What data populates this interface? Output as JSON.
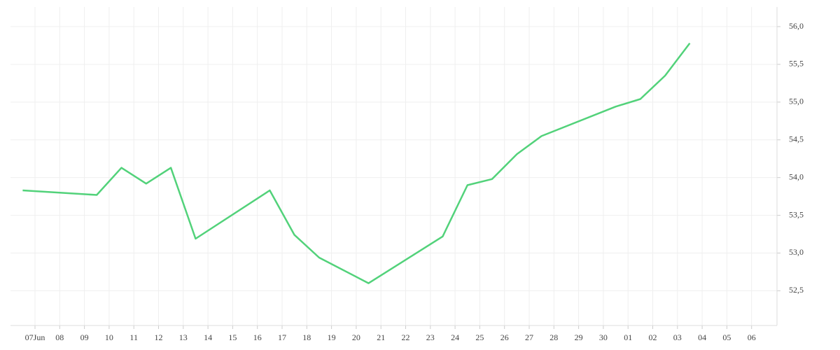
{
  "chart_data": {
    "type": "line",
    "categories": [
      "07Jun",
      "08",
      "09",
      "10",
      "11",
      "12",
      "13",
      "14",
      "15",
      "16",
      "17",
      "18",
      "19",
      "20",
      "21",
      "22",
      "23",
      "24",
      "25",
      "26",
      "27",
      "28",
      "29",
      "30",
      "01",
      "02",
      "03",
      "04",
      "05",
      "06"
    ],
    "series": [
      {
        "color": "#52d27a",
        "x": [
          "07Jun",
          "10",
          "11",
          "12",
          "13",
          "14",
          "17",
          "18",
          "19",
          "21",
          "24",
          "25",
          "26",
          "27",
          "28",
          "01",
          "02",
          "03",
          "04"
        ],
        "values": [
          53.83,
          53.77,
          54.13,
          53.92,
          54.13,
          53.19,
          53.83,
          53.24,
          52.94,
          52.6,
          53.22,
          53.9,
          53.98,
          54.31,
          54.55,
          54.94,
          55.04,
          55.35,
          55.78
        ]
      }
    ],
    "ylim": [
      52.04,
      56.26
    ],
    "yticks": [
      {
        "value": 52.5,
        "label": "52,5"
      },
      {
        "value": 53,
        "label": "53,0"
      },
      {
        "value": 53.5,
        "label": "53,5"
      },
      {
        "value": 54,
        "label": "54,0"
      },
      {
        "value": 54.5,
        "label": "54,5"
      },
      {
        "value": 55,
        "label": "55,0"
      },
      {
        "value": 55.5,
        "label": "55,5"
      },
      {
        "value": 56,
        "label": "56,0"
      }
    ],
    "grid": true
  }
}
